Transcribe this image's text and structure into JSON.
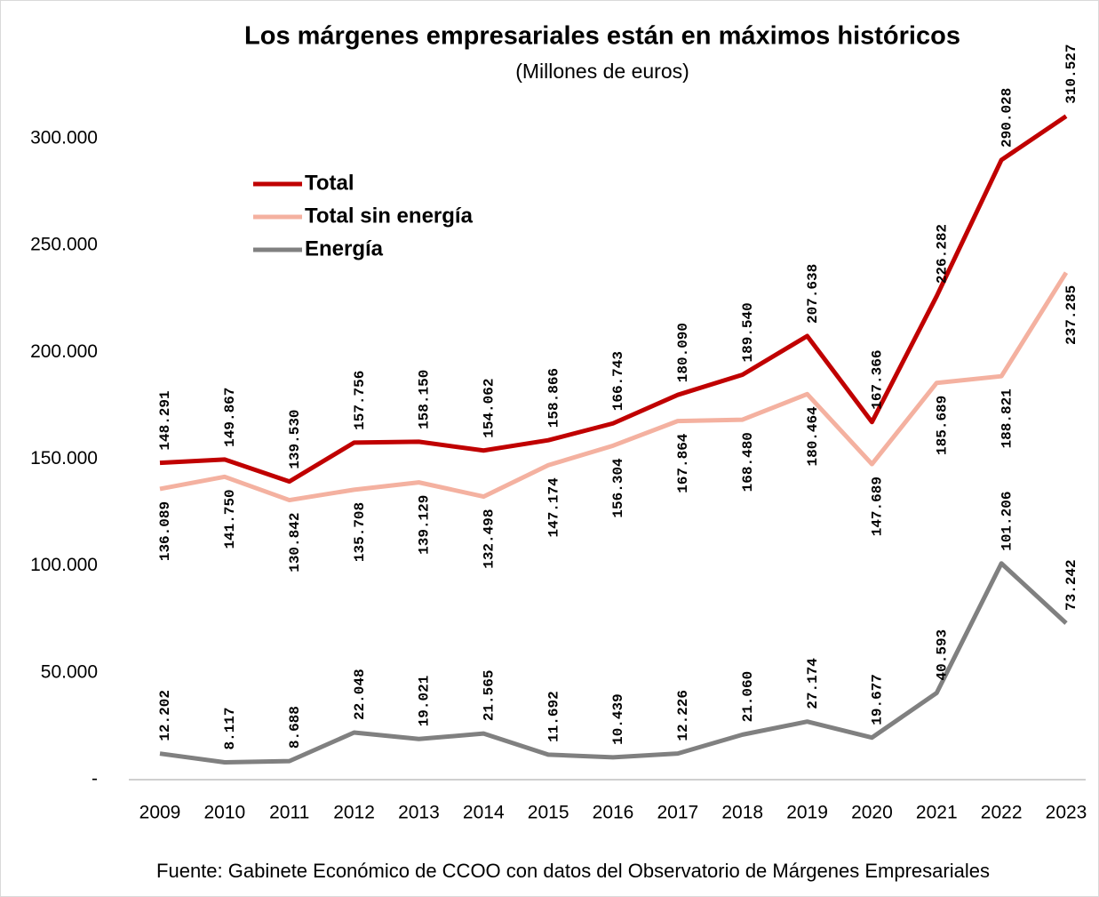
{
  "chart_data": {
    "type": "line",
    "title": "Los márgenes empresariales están en máximos históricos",
    "subtitle": "(Millones de euros)",
    "source": "Fuente: Gabinete Económico de CCOO con datos del Observatorio de Márgenes Empresariales",
    "categories": [
      "2009",
      "2010",
      "2011",
      "2012",
      "2013",
      "2014",
      "2015",
      "2016",
      "2017",
      "2018",
      "2019",
      "2020",
      "2021",
      "2022",
      "2023"
    ],
    "series": [
      {
        "name": "Total",
        "color": "#c00000",
        "label_side": "above",
        "values": [
          148291,
          149867,
          139530,
          157756,
          158150,
          154062,
          158866,
          166743,
          180090,
          189540,
          207638,
          167366,
          226282,
          290028,
          310527
        ],
        "value_labels": [
          "148.291",
          "149.867",
          "139.530",
          "157.756",
          "158.150",
          "154.062",
          "158.866",
          "166.743",
          "180.090",
          "189.540",
          "207.638",
          "167.366",
          "226.282",
          "290.028",
          "310.527"
        ]
      },
      {
        "name": "Total sin energía",
        "color": "#f4b1a0",
        "label_side": "below",
        "values": [
          136089,
          141750,
          130842,
          135708,
          139129,
          132498,
          147174,
          156304,
          167864,
          168480,
          180464,
          147689,
          185689,
          188821,
          237285
        ],
        "value_labels": [
          "136.089",
          "141.750",
          "130.842",
          "135.708",
          "139.129",
          "132.498",
          "147.174",
          "156.304",
          "167.864",
          "168.480",
          "180.464",
          "147.689",
          "185.689",
          "188.821",
          "237.285"
        ]
      },
      {
        "name": "Energía",
        "color": "#808080",
        "label_side": "above",
        "values": [
          12202,
          8117,
          8688,
          22048,
          19021,
          21565,
          11692,
          10439,
          12226,
          21060,
          27174,
          19677,
          40593,
          101206,
          73242
        ],
        "value_labels": [
          "12.202",
          "8.117",
          "8.688",
          "22.048",
          "19.021",
          "21.565",
          "11.692",
          "10.439",
          "12.226",
          "21.060",
          "27.174",
          "19.677",
          "40.593",
          "101.206",
          "73.242"
        ]
      }
    ],
    "ylim": [
      0,
      300000
    ],
    "yticks": [
      {
        "value": 0,
        "label": "-"
      },
      {
        "value": 50000,
        "label": "50.000"
      },
      {
        "value": 100000,
        "label": "100.000"
      },
      {
        "value": 150000,
        "label": "150.000"
      },
      {
        "value": 200000,
        "label": "200.000"
      },
      {
        "value": 250000,
        "label": "250.000"
      },
      {
        "value": 300000,
        "label": "300.000"
      }
    ],
    "grid": false,
    "legend": "upper left"
  }
}
